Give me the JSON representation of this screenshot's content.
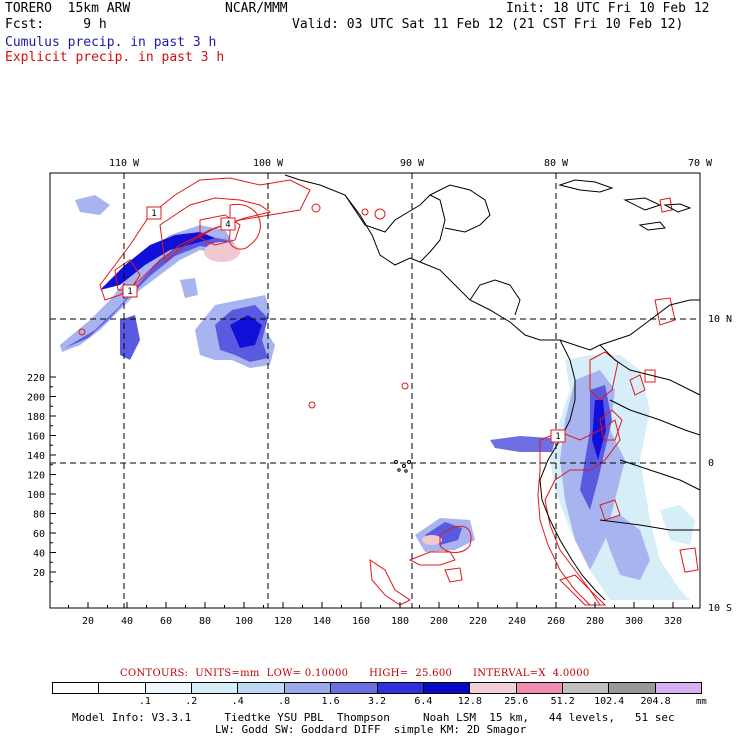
{
  "header": {
    "model": "TORERO  15km ARW",
    "center": "NCAR/MMM",
    "init": "Init: 18 UTC Fri 10 Feb 12",
    "fcst": "Fcst:     9 h",
    "valid": "Valid: 03 UTC Sat 11 Feb 12 (21 CST Fri 10 Feb 12)",
    "cumulus": "Cumulus precip. in past 3 h",
    "explicit": "Explicit precip. in past 3 h"
  },
  "map": {
    "top_lon_labels": [
      "110 W",
      "100 W",
      "90 W",
      "80 W",
      "70 W"
    ],
    "right_lat_labels": [
      "10 N",
      "0",
      "10 S"
    ],
    "y_grid_labels": [
      "220",
      "200",
      "180",
      "160",
      "140",
      "120",
      "100",
      "80",
      "60",
      "40",
      "20"
    ],
    "x_grid_labels": [
      "20",
      "40",
      "60",
      "80",
      "100",
      "120",
      "140",
      "160",
      "180",
      "200",
      "220",
      "240",
      "260",
      "280",
      "300",
      "320"
    ],
    "contour_boxes": [
      "1",
      "4",
      "1",
      "1"
    ],
    "colors": {
      "cumulus_light": "#a8b4f0",
      "cumulus_mid": "#5a5ae0",
      "cumulus_dark": "#1010d8",
      "pink": "#f0c8d0",
      "explicit_contour": "#e01818",
      "coast": "#000000"
    }
  },
  "legend": {
    "contours_text": "CONTOURS:  UNITS=mm  LOW= 0.10000      HIGH=  25.600      INTERVAL=X  4.0000",
    "colorbar_colors": [
      "#ffffff",
      "#ffffff",
      "#eef8fc",
      "#d6eef8",
      "#bcd8f4",
      "#9aa8ec",
      "#6e6ee4",
      "#3030e0",
      "#0808c8",
      "#f4d0d8",
      "#f08cb4",
      "#c0c0c0",
      "#989898",
      "#d8b0f4"
    ],
    "colorbar_labels": [
      ".1",
      ".2",
      ".4",
      ".8",
      "1.6",
      "3.2",
      "6.4",
      "12.8",
      "25.6",
      "51.2",
      "102.4",
      "204.8"
    ],
    "unit": "mm"
  },
  "footer": {
    "line1": "Model Info: V3.3.1     Tiedtke YSU PBL  Thompson     Noah LSM  15 km,   44 levels,   51 sec",
    "line2": "LW: Godd SW: Goddard DIFF  simple KM: 2D Smagor"
  }
}
